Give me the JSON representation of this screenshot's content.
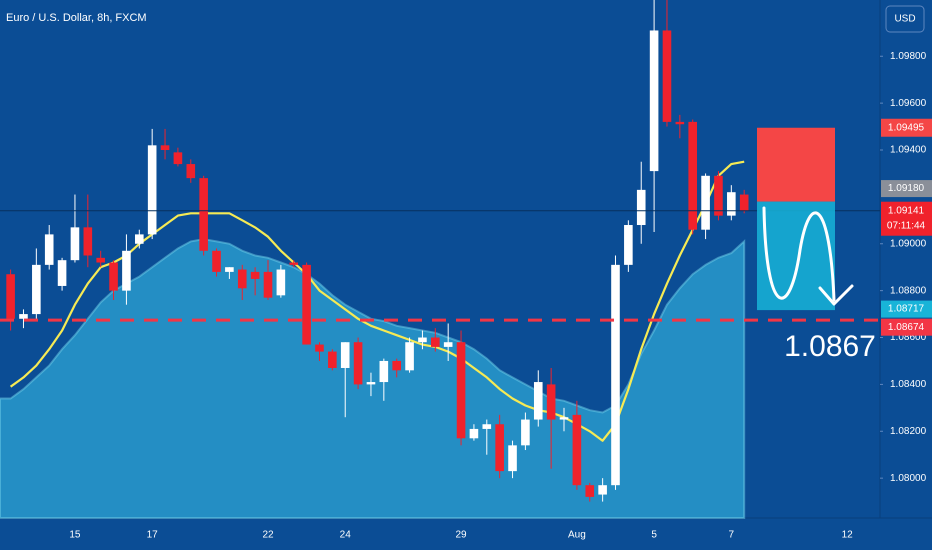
{
  "chart_data": {
    "type": "candlestick",
    "title": "Euro / U.S. Dollar, 8h, FXCM",
    "currency": "USD",
    "categories": [
      null,
      null,
      null,
      null,
      null,
      "15",
      null,
      null,
      null,
      null,
      null,
      "17",
      null,
      null,
      null,
      null,
      null,
      null,
      null,
      null,
      "22",
      null,
      null,
      null,
      null,
      null,
      "24",
      null,
      null,
      null,
      null,
      null,
      null,
      null,
      null,
      "29",
      null,
      null,
      null,
      null,
      null,
      null,
      null,
      null,
      "Aug",
      null,
      null,
      null,
      null,
      null,
      "5",
      null,
      null,
      null,
      null,
      null,
      "7",
      null,
      null,
      null,
      null,
      null,
      null,
      null,
      null,
      "12",
      null,
      null
    ],
    "open": [
      1.0887,
      1.0868,
      1.087,
      1.0891,
      1.0882,
      1.0893,
      1.0907,
      1.0894,
      1.0892,
      1.088,
      1.09,
      1.0904,
      1.0942,
      1.0939,
      1.0934,
      1.0928,
      1.0897,
      1.0888,
      1.0889,
      1.0888,
      1.0888,
      1.0878,
      1.0892,
      1.0891,
      1.0857,
      1.0854,
      1.0847,
      1.0858,
      1.084,
      1.0841,
      1.085,
      1.0846,
      1.0858,
      1.086,
      1.0856,
      1.0858,
      1.0817,
      1.0821,
      1.0823,
      1.0803,
      1.0814,
      1.0825,
      1.084,
      1.0825,
      1.0827,
      1.0797,
      1.0793,
      1.0797,
      1.0891,
      1.0908,
      1.0931,
      1.0991,
      1.0952,
      1.0952,
      1.0906,
      1.0929,
      1.0912,
      1.0921,
      null,
      null,
      null,
      null,
      null,
      null,
      null,
      null,
      null,
      null
    ],
    "high": [
      1.0889,
      1.0872,
      1.0898,
      1.0908,
      1.0894,
      1.0921,
      1.0921,
      1.0897,
      1.0893,
      1.0904,
      1.0906,
      1.0949,
      1.0949,
      1.0941,
      1.0936,
      1.0929,
      1.0898,
      1.089,
      1.0891,
      1.089,
      1.0893,
      1.0891,
      1.0893,
      1.0892,
      1.0858,
      1.0855,
      1.0858,
      1.086,
      1.0845,
      1.0851,
      1.0851,
      1.086,
      1.0863,
      1.0864,
      1.0866,
      1.0863,
      1.0823,
      1.0825,
      1.0827,
      1.0816,
      1.0828,
      1.0846,
      1.0847,
      1.083,
      1.0833,
      1.0798,
      1.08,
      1.0895,
      1.091,
      1.0935,
      1.1004,
      1.1004,
      1.0955,
      1.0953,
      1.093,
      1.0931,
      1.0925,
      1.0923,
      null,
      null,
      null,
      null,
      null,
      null,
      null,
      null,
      null,
      null
    ],
    "low": [
      1.0863,
      1.0864,
      1.0868,
      1.0889,
      1.088,
      1.0892,
      1.089,
      1.089,
      1.0876,
      1.0874,
      1.0898,
      1.0902,
      1.0936,
      1.0933,
      1.0926,
      1.0895,
      1.0886,
      1.0885,
      1.0876,
      1.0878,
      1.0876,
      1.0877,
      1.089,
      1.0857,
      1.085,
      1.0846,
      1.0826,
      1.0838,
      1.0835,
      1.0833,
      1.0843,
      1.0845,
      1.0855,
      1.0854,
      1.085,
      1.0814,
      1.0816,
      1.081,
      1.08,
      1.08,
      1.0812,
      1.0822,
      1.0804,
      1.082,
      1.0795,
      1.079,
      1.079,
      1.0795,
      1.0888,
      1.09,
      1.0905,
      1.095,
      1.0945,
      1.0904,
      1.0902,
      1.091,
      1.091,
      1.0913,
      null,
      null,
      null,
      null,
      null,
      null,
      null,
      null,
      null,
      null
    ],
    "close": [
      1.0868,
      1.087,
      1.0891,
      1.0904,
      1.0893,
      1.0907,
      1.0895,
      1.0892,
      1.088,
      1.0897,
      1.0904,
      1.0942,
      1.094,
      1.0934,
      1.0928,
      1.0897,
      1.0888,
      1.089,
      1.0881,
      1.0885,
      1.0877,
      1.0889,
      1.0891,
      1.0857,
      1.0854,
      1.0847,
      1.0858,
      1.084,
      1.0841,
      1.085,
      1.0846,
      1.0858,
      1.086,
      1.0856,
      1.0858,
      1.0817,
      1.0821,
      1.0823,
      1.0803,
      1.0814,
      1.0825,
      1.0841,
      1.0825,
      1.0826,
      1.0797,
      1.0792,
      1.0797,
      1.0891,
      1.0908,
      1.0923,
      1.0991,
      1.0952,
      1.0951,
      1.0906,
      1.0929,
      1.0912,
      1.0922,
      1.0914,
      null,
      null,
      null,
      null,
      null,
      null,
      null,
      null,
      null,
      null
    ],
    "up_color": "#ffffff",
    "down_color": "#f0222c",
    "overlays": [
      {
        "type": "area",
        "color": "#2a9fd0",
        "values": [
          1.0834,
          1.0838,
          1.0843,
          1.0848,
          1.0855,
          1.0861,
          1.0868,
          1.0875,
          1.088,
          1.0883,
          1.0886,
          1.089,
          1.0894,
          1.0898,
          1.0901,
          1.0902,
          1.0901,
          1.09,
          1.0897,
          1.0895,
          1.0894,
          1.0892,
          1.089,
          1.0887,
          1.0883,
          1.0878,
          1.0874,
          1.0871,
          1.0868,
          1.0867,
          1.0865,
          1.0864,
          1.0863,
          1.0862,
          1.086,
          1.0858,
          1.0855,
          1.0851,
          1.0846,
          1.0843,
          1.084,
          1.0837,
          1.0834,
          1.0833,
          1.0831,
          1.0829,
          1.0828,
          1.0831,
          1.084,
          1.0853,
          1.0863,
          1.0874,
          1.0881,
          1.0887,
          1.0891,
          1.0894,
          1.0896,
          1.0901,
          null,
          null,
          null,
          null,
          null,
          null,
          null,
          null,
          null,
          null
        ]
      },
      {
        "type": "line",
        "color": "#f6ea54",
        "values": [
          1.0839,
          1.0843,
          1.0848,
          1.0855,
          1.0863,
          1.0874,
          1.0883,
          1.089,
          1.0892,
          1.0895,
          1.09,
          1.0904,
          1.0908,
          1.0912,
          1.0913,
          1.0913,
          1.0913,
          1.0913,
          1.091,
          1.0907,
          1.0903,
          1.0897,
          1.0892,
          1.0887,
          1.088,
          1.0876,
          1.0872,
          1.0868,
          1.0865,
          1.0863,
          1.0861,
          1.0859,
          1.0857,
          1.0856,
          1.0854,
          1.0851,
          1.0847,
          1.0843,
          1.0838,
          1.0834,
          1.0831,
          1.0829,
          1.0828,
          1.0826,
          1.0823,
          1.082,
          1.0816,
          1.0823,
          1.0838,
          1.0855,
          1.087,
          1.0883,
          1.0895,
          1.0906,
          1.0917,
          1.0929,
          1.0934,
          1.0935,
          null,
          null,
          null,
          null,
          null,
          null,
          null,
          null,
          null,
          null
        ]
      }
    ],
    "ylim": [
      1.0783,
      1.1004
    ],
    "yticks": [
      {
        "value": 1.08,
        "label": "1.08000"
      },
      {
        "value": 1.082,
        "label": "1.08200"
      },
      {
        "value": 1.084,
        "label": "1.08400"
      },
      {
        "value": 1.086,
        "label": "1.08600"
      },
      {
        "value": 1.088,
        "label": "1.08800"
      },
      {
        "value": 1.09,
        "label": "1.09000"
      },
      {
        "value": 1.094,
        "label": "1.09400"
      },
      {
        "value": 1.096,
        "label": "1.09600"
      },
      {
        "value": 1.098,
        "label": "1.09800"
      }
    ],
    "horizontal_line": {
      "value": 1.08674,
      "color": "#f23645"
    },
    "last_price": {
      "value": 1.09141,
      "countdown": "07:11:44"
    },
    "position": {
      "stop": 1.09495,
      "entry": {
        "value": 1.0918,
        "label": "1.09180"
      },
      "target": 1.08717,
      "stop_color": "#f44646",
      "target_color": "#18b4d8"
    },
    "annotation": "1.0867"
  }
}
